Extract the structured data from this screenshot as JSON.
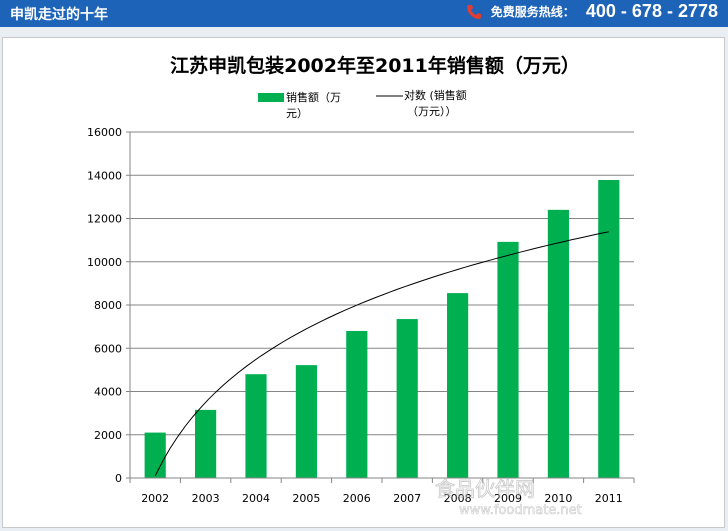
{
  "header": {
    "title": "申凯走过的十年",
    "hotline_label": "免费服务热线：",
    "hotline_number": "400 - 678 - 2778"
  },
  "watermark": {
    "text_cn": "食品伙伴网",
    "text_url": "www.foodmate.net"
  },
  "colors": {
    "header_bg": "#1d63b7",
    "bar": "#00b050",
    "trendline": "#000000"
  },
  "chart_data": {
    "type": "bar",
    "title": "江苏申凯包装2002年至2011年销售额（万元）",
    "categories": [
      "2002",
      "2003",
      "2004",
      "2005",
      "2006",
      "2007",
      "2008",
      "2009",
      "2010",
      "2011"
    ],
    "series": [
      {
        "name": "销售额（万元）",
        "values": [
          2100,
          3150,
          4800,
          5220,
          6800,
          7350,
          8550,
          10920,
          12400,
          13780
        ]
      }
    ],
    "trendline": {
      "type": "logarithmic",
      "name": "对数 (销售额（万元）)",
      "values": [
        100,
        3745,
        5718,
        7084,
        8135,
        8992,
        9717,
        10343,
        10896,
        11391
      ]
    },
    "legend": {
      "bar_label_line1": "销售额（万",
      "bar_label_line2": "元）",
      "trend_label_line1": "对数 (销售额",
      "trend_label_line2": "（万元））",
      "position": "top"
    },
    "yticks": [
      "0",
      "2000",
      "4000",
      "6000",
      "8000",
      "10000",
      "12000",
      "14000",
      "16000"
    ],
    "ylim": [
      0,
      16000
    ],
    "grid": true
  }
}
